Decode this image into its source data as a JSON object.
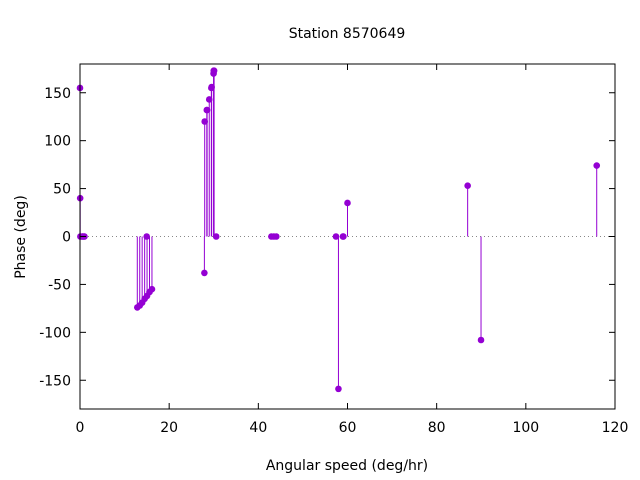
{
  "chart_data": {
    "type": "stem",
    "title": "Station 8570649",
    "xlabel": "Angular speed (deg/hr)",
    "ylabel": "Phase (deg)",
    "xlim": [
      0,
      120
    ],
    "ylim": [
      -180,
      180
    ],
    "xticks": [
      0,
      20,
      40,
      60,
      80,
      100,
      120
    ],
    "yticks": [
      -150,
      -100,
      -50,
      0,
      50,
      100,
      150
    ],
    "zero_line": "dotted",
    "color": "#9400d3",
    "points": [
      {
        "x": 0.0,
        "y": 155
      },
      {
        "x": 0.04,
        "y": 40
      },
      {
        "x": 0.08,
        "y": 0
      },
      {
        "x": 0.5,
        "y": 0
      },
      {
        "x": 0.6,
        "y": 0
      },
      {
        "x": 0.9,
        "y": 0
      },
      {
        "x": 1.0,
        "y": 0
      },
      {
        "x": 12.85,
        "y": -74
      },
      {
        "x": 13.4,
        "y": -72
      },
      {
        "x": 13.94,
        "y": -69
      },
      {
        "x": 14.5,
        "y": -65
      },
      {
        "x": 14.96,
        "y": 0
      },
      {
        "x": 15.04,
        "y": -62
      },
      {
        "x": 15.59,
        "y": -58
      },
      {
        "x": 16.14,
        "y": -55
      },
      {
        "x": 27.9,
        "y": -38
      },
      {
        "x": 27.97,
        "y": 120
      },
      {
        "x": 28.44,
        "y": 132
      },
      {
        "x": 28.51,
        "y": 132
      },
      {
        "x": 28.99,
        "y": 143
      },
      {
        "x": 29.46,
        "y": 155
      },
      {
        "x": 29.53,
        "y": 156
      },
      {
        "x": 29.96,
        "y": 170
      },
      {
        "x": 30.0,
        "y": 173
      },
      {
        "x": 30.08,
        "y": 173
      },
      {
        "x": 30.55,
        "y": 0
      },
      {
        "x": 42.93,
        "y": 0
      },
      {
        "x": 43.48,
        "y": 0
      },
      {
        "x": 44.03,
        "y": 0
      },
      {
        "x": 57.42,
        "y": 0
      },
      {
        "x": 57.97,
        "y": -159
      },
      {
        "x": 58.98,
        "y": 0
      },
      {
        "x": 59.07,
        "y": 0
      },
      {
        "x": 60.0,
        "y": 35
      },
      {
        "x": 86.95,
        "y": 53
      },
      {
        "x": 89.95,
        "y": -108
      },
      {
        "x": 115.9,
        "y": 74
      }
    ]
  }
}
